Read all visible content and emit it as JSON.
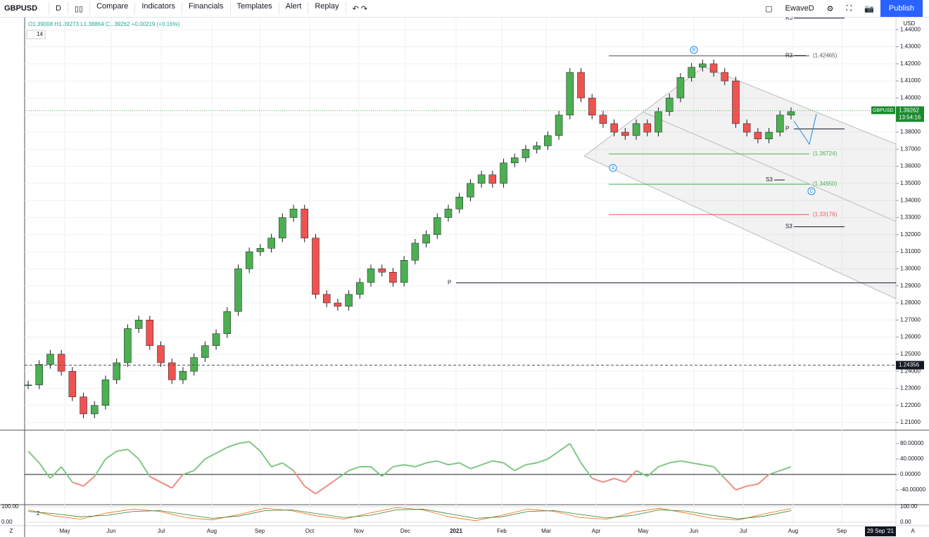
{
  "toolbar": {
    "symbol": "GBPUSD",
    "interval": "D",
    "items": [
      "Compare",
      "Indicators",
      "Financials",
      "Templates",
      "Alert",
      "Replay"
    ],
    "layout_name": "EwaveD",
    "publish": "Publish"
  },
  "legend": {
    "ohlc": "O1.39008 H1.39273 L1.38864 C1.39262 +0.00219 (+0.16%)",
    "indicator_param": "14",
    "stoch_param": "2"
  },
  "price_chart": {
    "currency": "USD",
    "ylim": [
      1.2055,
      1.4471
    ],
    "yticks": [
      {
        "value": 1.44,
        "label": "1.44000"
      },
      {
        "value": 1.43,
        "label": "1.43000"
      },
      {
        "value": 1.42,
        "label": "1.42000"
      },
      {
        "value": 1.41,
        "label": "1.41000"
      },
      {
        "value": 1.4,
        "label": "1.40000"
      },
      {
        "value": 1.39,
        "label": "1.39000"
      },
      {
        "value": 1.38,
        "label": "1.38000"
      },
      {
        "value": 1.37,
        "label": "1.37000"
      },
      {
        "value": 1.36,
        "label": "1.36000"
      },
      {
        "value": 1.35,
        "label": "1.35000"
      },
      {
        "value": 1.34,
        "label": "1.34000"
      },
      {
        "value": 1.33,
        "label": "1.33000"
      },
      {
        "value": 1.32,
        "label": "1.32000"
      },
      {
        "value": 1.31,
        "label": "1.31000"
      },
      {
        "value": 1.3,
        "label": "1.30000"
      },
      {
        "value": 1.29,
        "label": "1.29000"
      },
      {
        "value": 1.28,
        "label": "1.28000"
      },
      {
        "value": 1.27,
        "label": "1.27000"
      },
      {
        "value": 1.26,
        "label": "1.26000"
      },
      {
        "value": 1.25,
        "label": "1.25000"
      },
      {
        "value": 1.24,
        "label": "1.24000"
      },
      {
        "value": 1.23,
        "label": "1.23000"
      },
      {
        "value": 1.22,
        "label": "1.22000"
      },
      {
        "value": 1.21,
        "label": "1.21000"
      }
    ],
    "closes": [
      1.232,
      1.244,
      1.25,
      1.24,
      1.225,
      1.215,
      1.22,
      1.235,
      1.245,
      1.265,
      1.27,
      1.255,
      1.245,
      1.235,
      1.24,
      1.248,
      1.255,
      1.262,
      1.275,
      1.3,
      1.31,
      1.312,
      1.318,
      1.33,
      1.335,
      1.318,
      1.285,
      1.28,
      1.278,
      1.285,
      1.292,
      1.3,
      1.298,
      1.292,
      1.305,
      1.315,
      1.32,
      1.33,
      1.335,
      1.342,
      1.35,
      1.355,
      1.35,
      1.362,
      1.365,
      1.37,
      1.372,
      1.378,
      1.39,
      1.415,
      1.4,
      1.39,
      1.385,
      1.38,
      1.378,
      1.385,
      1.38,
      1.392,
      1.4,
      1.412,
      1.418,
      1.42,
      1.415,
      1.41,
      1.385,
      1.38,
      1.376,
      1.38,
      1.39,
      1.392
    ],
    "last_price": {
      "symbol": "GBPUSD",
      "price": 1.39262,
      "countdown": "13:54:16"
    },
    "crosshair_price": 1.24356,
    "fib_levels": [
      {
        "value": 1.42465,
        "label": "(1.42465)",
        "color": "#555555"
      },
      {
        "value": 1.36724,
        "label": "(1.36724)",
        "color": "#4caf50"
      },
      {
        "value": 1.3495,
        "label": "(1.34950)",
        "color": "#4caf50"
      },
      {
        "value": 1.33176,
        "label": "(1.33176)",
        "color": "#ef5350"
      }
    ],
    "pivots": [
      {
        "name": "R3",
        "value": 1.4468
      },
      {
        "name": "R3",
        "value": 1.4248
      },
      {
        "name": "P",
        "value": 1.3819
      },
      {
        "name": "S3",
        "value": 1.352
      },
      {
        "name": "S3",
        "value": 1.3246
      },
      {
        "name": "P",
        "value": 1.2918
      }
    ],
    "wave_labels": [
      "A",
      "B",
      "C"
    ]
  },
  "oscillator": {
    "ylim": [
      -78,
      114.5
    ],
    "yticks": [
      {
        "value": 80,
        "label": "80.00000"
      },
      {
        "value": 40,
        "label": "40.00000"
      },
      {
        "value": 0,
        "label": "0.00000"
      },
      {
        "value": -40,
        "label": "-40.00000"
      }
    ],
    "values": [
      60,
      30,
      -10,
      20,
      -20,
      -30,
      -5,
      40,
      60,
      65,
      40,
      -5,
      -20,
      -35,
      0,
      10,
      40,
      55,
      70,
      80,
      85,
      60,
      20,
      30,
      10,
      -30,
      -50,
      -30,
      -10,
      10,
      20,
      20,
      -5,
      20,
      25,
      20,
      30,
      35,
      25,
      30,
      15,
      25,
      35,
      30,
      10,
      25,
      30,
      40,
      60,
      80,
      30,
      -10,
      -20,
      -10,
      -20,
      10,
      -5,
      20,
      30,
      35,
      30,
      25,
      20,
      -10,
      -40,
      -30,
      -25,
      0,
      10,
      20
    ]
  },
  "stochastic": {
    "ylim": [
      -22.7,
      113.6
    ],
    "yticks": [
      {
        "value": 100,
        "label": "100.00"
      },
      {
        "value": 0,
        "label": "0.00"
      }
    ],
    "k": [
      80,
      40,
      20,
      60,
      85,
      70,
      30,
      15,
      50,
      90,
      75,
      40,
      20,
      60,
      95,
      80,
      35,
      10,
      45,
      85,
      70,
      30,
      20,
      65,
      90,
      60,
      25,
      15,
      55,
      88
    ],
    "d": [
      70,
      55,
      35,
      45,
      70,
      75,
      50,
      25,
      40,
      75,
      80,
      55,
      30,
      45,
      80,
      85,
      55,
      25,
      35,
      70,
      75,
      50,
      28,
      45,
      80,
      72,
      45,
      22,
      40,
      75
    ]
  },
  "time_axis": {
    "labels": [
      "May",
      "Jun",
      "Jul",
      "Aug",
      "Sep",
      "Oct",
      "Nov",
      "Dec",
      "2021",
      "Feb",
      "Mar",
      "Apr",
      "May",
      "Jun",
      "Jul",
      "Aug",
      "Sep"
    ],
    "cursor_date": "29 Sep '21"
  }
}
